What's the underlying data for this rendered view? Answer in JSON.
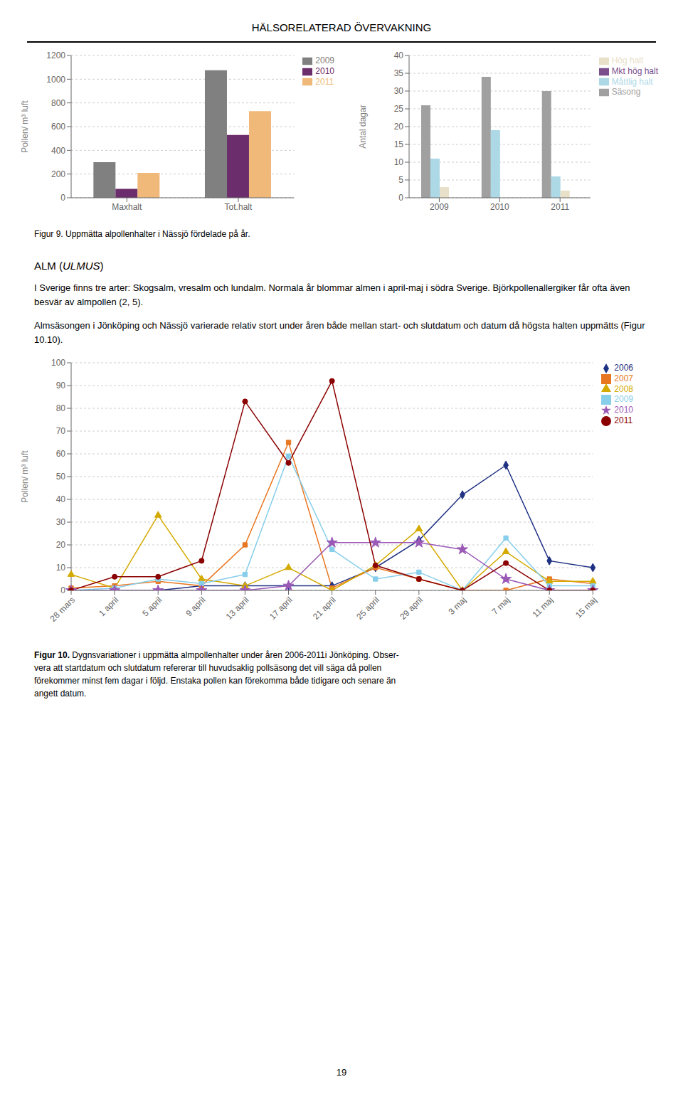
{
  "chart_data": [
    {
      "type": "bar",
      "annotations": [
        "HÄLSORELATERAD ÖVERVAKNING"
      ],
      "categories": [
        "Maxhalt",
        "Tot.halt"
      ],
      "ylabel": "Pollen/ m³ luft",
      "ylim": [
        0,
        1200
      ],
      "yticks": [
        0,
        200,
        400,
        600,
        800,
        1000,
        1200
      ],
      "grid": true,
      "legend": "right",
      "series": [
        {
          "name": "2009",
          "color": "#808080",
          "values": [
            300,
            1075
          ]
        },
        {
          "name": "2010",
          "color": "#6B2D6B",
          "values": [
            75,
            530
          ]
        },
        {
          "name": "2011",
          "color": "#F0B97A",
          "values": [
            210,
            730
          ]
        }
      ]
    },
    {
      "type": "bar",
      "annotations": [
        "Figur 9. Uppmätta alpollenhalter i Nässjö fördelade på år."
      ],
      "categories": [
        "2009",
        "2010",
        "2011"
      ],
      "ylabel": "Antal dagar",
      "ylim": [
        0,
        40
      ],
      "yticks": [
        0,
        5,
        10,
        15,
        20,
        25,
        30,
        35,
        40
      ],
      "grid": true,
      "legend": "right",
      "series": [
        {
          "name": "Säsong",
          "color": "#A0A0A0",
          "values": [
            26,
            34,
            30
          ]
        },
        {
          "name": "Måttlig halt",
          "color": "#ADD8E6",
          "values": [
            11,
            19,
            6
          ]
        },
        {
          "name": "Hög halt",
          "color": "#E8E0C8",
          "values": [
            3,
            0,
            2
          ]
        },
        {
          "name": "Mkt hög halt",
          "color": "#7B4F8C",
          "values": [
            0,
            0,
            0
          ]
        }
      ]
    },
    {
      "type": "line",
      "annotations": [
        "ALM (ULMUS)",
        "I Sverige finns tre arter: Skogsalm, vresalm och lundalm. Normala år blommar almen i april-maj i södra Sverige. Björkpollenallergiker får ofta även besvär av almpollen (2, 5).",
        "Almsäsongen i Jönköping och Nässjö varierade relativ stort under åren både mellan start- och slutdatum och datum då högsta halten uppmätts (Figur 10.10).",
        "Figur 10.",
        " Dygnsvariationer i uppmätta almpollenhalter under åren 2006-2011i Jönköping. Obser-\nvera att startdatum och slutdatum refererar till huvudsaklig pollsäsong det vill säga då pollen\nförekommer minst fem dagar i följd. Enstaka pollen kan förekomma både tidigare och senare än\nangett datum.",
        "19"
      ],
      "categories": [
        "28 mars",
        "1 april",
        "5 april",
        "9 april",
        "13 april",
        "17 april",
        "21 april",
        "25 april",
        "29 april",
        "3 maj",
        "7 maj",
        "11 maj",
        "15 maj"
      ],
      "ylabel": "Pollen/ m³ luft",
      "ylim": [
        0,
        100
      ],
      "yticks": [
        0,
        10,
        20,
        30,
        40,
        50,
        60,
        70,
        80,
        90,
        100
      ],
      "grid": true,
      "legend": "right",
      "series": [
        {
          "name": "2006",
          "color": "#1F3182",
          "marker": "diamond",
          "values": [
            0,
            0,
            0,
            2,
            2,
            2,
            2,
            10,
            22,
            42,
            55,
            13,
            10
          ]
        },
        {
          "name": "2007",
          "color": "#E87722",
          "marker": "square",
          "values": [
            1,
            2,
            4,
            2,
            20,
            65,
            1,
            10,
            5,
            0,
            0,
            5,
            3
          ]
        },
        {
          "name": "2008",
          "color": "#D4AA00",
          "marker": "triangle",
          "values": [
            7,
            1,
            33,
            5,
            2,
            10,
            0,
            11,
            27,
            0,
            17,
            4,
            4
          ]
        },
        {
          "name": "2009",
          "color": "#87CEEB",
          "marker": "square",
          "values": [
            0,
            1,
            5,
            3,
            7,
            59,
            18,
            5,
            8,
            0,
            23,
            2,
            2
          ]
        },
        {
          "name": "2010",
          "color": "#9B59B6",
          "marker": "star",
          "values": [
            0,
            0,
            0,
            0,
            0,
            2,
            21,
            21,
            21,
            18,
            5,
            0,
            0
          ]
        },
        {
          "name": "2011",
          "color": "#8B0000",
          "marker": "circle",
          "values": [
            0,
            6,
            6,
            13,
            83,
            56,
            92,
            11,
            5,
            0,
            12,
            0,
            0
          ]
        }
      ]
    }
  ]
}
